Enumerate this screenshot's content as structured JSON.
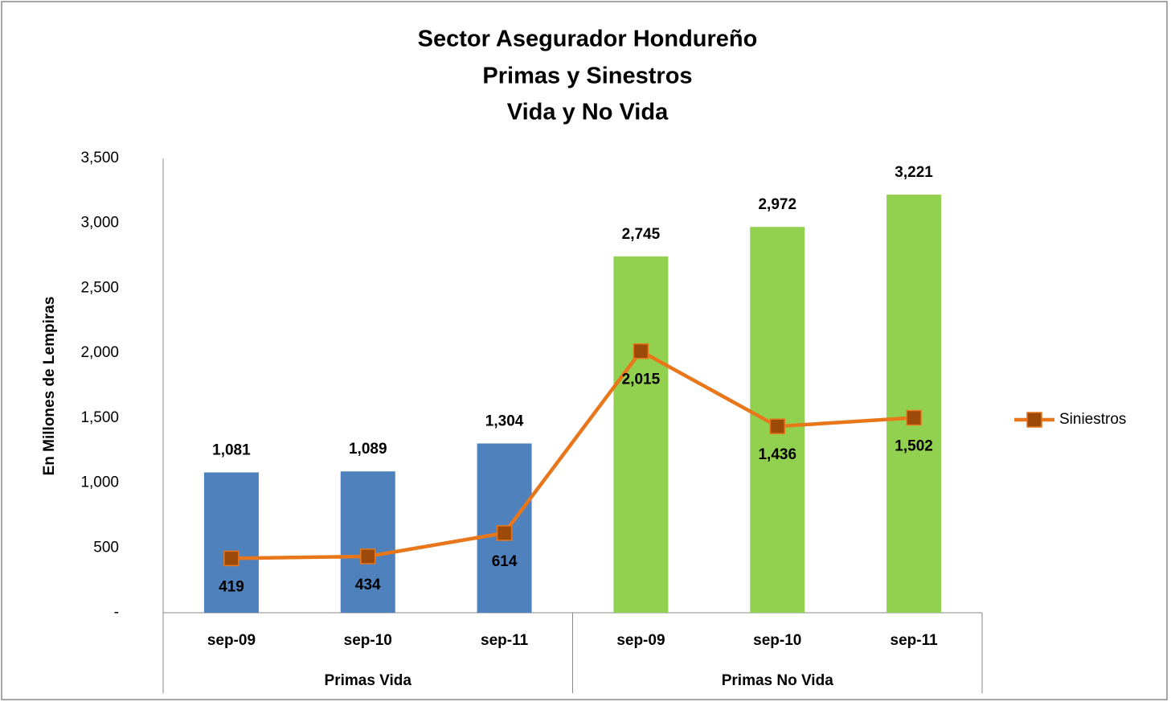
{
  "chart_data": {
    "type": "bar",
    "title": [
      "Sector Asegurador Hondureño",
      "Primas y Sinestros",
      "Vida y No Vida"
    ],
    "ylabel": "En Millones de Lempiras",
    "categories": [
      "sep-09",
      "sep-10",
      "sep-11",
      "sep-09",
      "sep-10",
      "sep-11"
    ],
    "groups": [
      "Primas Vida",
      "Primas No Vida"
    ],
    "ylim": [
      0,
      3500
    ],
    "yticks": [
      {
        "value": 0,
        "label": "-"
      },
      500,
      {
        "value": 1000,
        "label": "1,000"
      },
      {
        "value": 1500,
        "label": "1,500"
      },
      {
        "value": 2000,
        "label": "2,000"
      },
      {
        "value": 2500,
        "label": "2,500"
      },
      {
        "value": 3000,
        "label": "3,000"
      },
      {
        "value": 3500,
        "label": "3,500"
      }
    ],
    "legend": "right",
    "series": [
      {
        "type": "bar",
        "colors": [
          "#4f81bd",
          "#4f81bd",
          "#4f81bd",
          "#92d050",
          "#92d050",
          "#92d050"
        ],
        "values": [
          1081,
          1089,
          1304,
          2745,
          2972,
          3221
        ],
        "value_labels": [
          "1,081",
          "1,089",
          "1,304",
          "2,745",
          "2,972",
          "3,221"
        ]
      },
      {
        "type": "line",
        "name": "Siniestros",
        "color": "#e8761a",
        "marker_color": "#9c4a0a",
        "values": [
          419,
          434,
          614,
          2015,
          1436,
          1502
        ],
        "value_labels": [
          "419",
          "434",
          "614",
          "2,015",
          "1,436",
          "1,502"
        ]
      }
    ]
  }
}
